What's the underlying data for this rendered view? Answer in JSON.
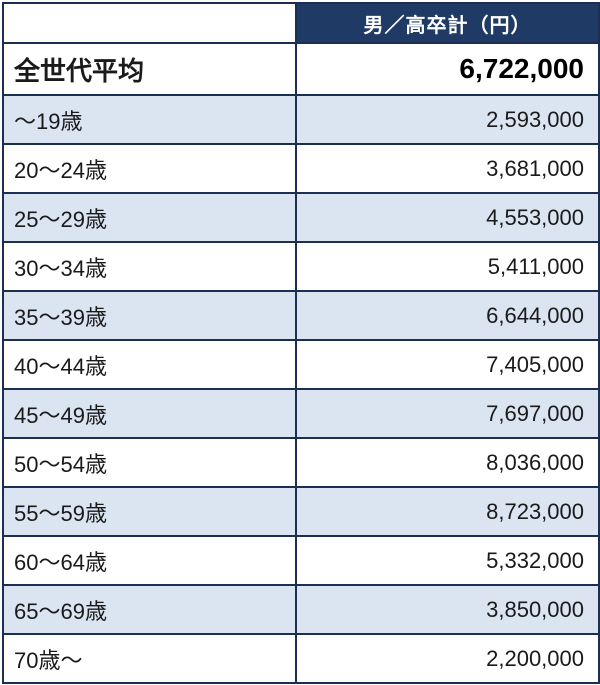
{
  "chart_data": {
    "type": "table",
    "title": "",
    "columns": [
      "",
      "男／高卒計（円）"
    ],
    "rows": [
      {
        "label": "全世代平均",
        "value": 6722000,
        "display": "6,722,000",
        "emphasis": true
      },
      {
        "label": "～19歳",
        "value": 2593000,
        "display": "2,593,000"
      },
      {
        "label": "20～24歳",
        "value": 3681000,
        "display": "3,681,000"
      },
      {
        "label": "25～29歳",
        "value": 4553000,
        "display": "4,553,000"
      },
      {
        "label": "30～34歳",
        "value": 5411000,
        "display": "5,411,000"
      },
      {
        "label": "35～39歳",
        "value": 6644000,
        "display": "6,644,000"
      },
      {
        "label": "40～44歳",
        "value": 7405000,
        "display": "7,405,000"
      },
      {
        "label": "45～49歳",
        "value": 7697000,
        "display": "7,697,000"
      },
      {
        "label": "50～54歳",
        "value": 8036000,
        "display": "8,036,000"
      },
      {
        "label": "55～59歳",
        "value": 8723000,
        "display": "8,723,000"
      },
      {
        "label": "60～64歳",
        "value": 5332000,
        "display": "5,332,000"
      },
      {
        "label": "65～69歳",
        "value": 3850000,
        "display": "3,850,000"
      },
      {
        "label": "70歳～",
        "value": 2200000,
        "display": "2,200,000"
      }
    ]
  },
  "colors": {
    "header_bg": "#1f3a64",
    "header_text": "#ffffff",
    "stripe_bg": "#dbe5f1",
    "row_bg": "#ffffff",
    "border": "#1c2e52",
    "text": "#1a1a1a"
  }
}
